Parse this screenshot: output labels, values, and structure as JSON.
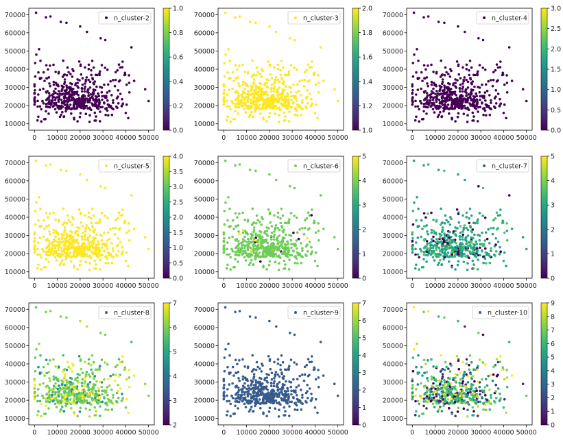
{
  "chart_data": [
    {
      "type": "scatter",
      "legend": "n_cluster-2",
      "legend_position": "top-right",
      "xlim": [
        -2500,
        52500
      ],
      "ylim": [
        6500,
        73500
      ],
      "xticks": [
        "0",
        "10000",
        "20000",
        "30000",
        "40000",
        "50000"
      ],
      "yticks": [
        "10000",
        "20000",
        "30000",
        "40000",
        "50000",
        "60000",
        "70000"
      ],
      "colorbar": {
        "min": 0,
        "max": 1,
        "ticks": [
          "0.0",
          "0.2",
          "0.4",
          "0.6",
          "0.8",
          "1.0"
        ]
      },
      "point_color_value": 0,
      "seed": 101,
      "mixed": false
    },
    {
      "type": "scatter",
      "legend": "n_cluster-3",
      "legend_position": "top-right",
      "xlim": [
        -2500,
        52500
      ],
      "ylim": [
        6500,
        73500
      ],
      "xticks": [
        "0",
        "10000",
        "20000",
        "30000",
        "40000",
        "50000"
      ],
      "yticks": [
        "10000",
        "20000",
        "30000",
        "40000",
        "50000",
        "60000",
        "70000"
      ],
      "colorbar": {
        "min": 1,
        "max": 2,
        "ticks": [
          "1.0",
          "1.2",
          "1.4",
          "1.6",
          "1.8",
          "2.0"
        ]
      },
      "point_color_value": 2,
      "seed": 101,
      "mixed": false
    },
    {
      "type": "scatter",
      "legend": "n_cluster-4",
      "legend_position": "top-right",
      "xlim": [
        -2500,
        52500
      ],
      "ylim": [
        6500,
        73500
      ],
      "xticks": [
        "0",
        "10000",
        "20000",
        "30000",
        "40000",
        "50000"
      ],
      "yticks": [
        "10000",
        "20000",
        "30000",
        "40000",
        "50000",
        "60000",
        "70000"
      ],
      "colorbar": {
        "min": 0,
        "max": 3,
        "ticks": [
          "0.0",
          "0.5",
          "1.0",
          "1.5",
          "2.0",
          "2.5",
          "3.0"
        ]
      },
      "point_color_value": 0,
      "seed": 101,
      "mixed": false
    },
    {
      "type": "scatter",
      "legend": "n_cluster-5",
      "legend_position": "top-right",
      "xlim": [
        -2500,
        52500
      ],
      "ylim": [
        6500,
        73500
      ],
      "xticks": [
        "0",
        "10000",
        "20000",
        "30000",
        "40000",
        "50000"
      ],
      "yticks": [
        "10000",
        "20000",
        "30000",
        "40000",
        "50000",
        "60000",
        "70000"
      ],
      "colorbar": {
        "min": 0,
        "max": 4,
        "ticks": [
          "0.0",
          "0.5",
          "1.0",
          "1.5",
          "2.0",
          "2.5",
          "3.0",
          "3.5",
          "4.0"
        ]
      },
      "point_color_value": 4,
      "seed": 101,
      "mixed": false
    },
    {
      "type": "scatter",
      "legend": "n_cluster-6",
      "legend_position": "top-right",
      "xlim": [
        -2500,
        52500
      ],
      "ylim": [
        6500,
        73500
      ],
      "xticks": [
        "0",
        "10000",
        "20000",
        "30000",
        "40000",
        "50000"
      ],
      "yticks": [
        "10000",
        "20000",
        "30000",
        "40000",
        "50000",
        "60000",
        "70000"
      ],
      "colorbar": {
        "min": 0,
        "max": 5,
        "ticks": [
          "0",
          "1",
          "2",
          "3",
          "4",
          "5"
        ]
      },
      "point_color_value": 3.9,
      "seed": 101,
      "mixed": false,
      "accent_values": [
        0,
        5
      ]
    },
    {
      "type": "scatter",
      "legend": "n_cluster-7",
      "legend_position": "top-right",
      "xlim": [
        -2500,
        52500
      ],
      "ylim": [
        6500,
        73500
      ],
      "xticks": [
        "0",
        "10000",
        "20000",
        "30000",
        "40000",
        "50000"
      ],
      "yticks": [
        "10000",
        "20000",
        "30000",
        "40000",
        "50000",
        "60000",
        "70000"
      ],
      "colorbar": {
        "min": 0,
        "max": 5,
        "ticks": [
          "0",
          "1",
          "2",
          "3",
          "4",
          "5"
        ]
      },
      "point_color_value": 2.9,
      "seed": 101,
      "mixed": true,
      "mix_values": [
        0,
        2.9,
        2.9,
        3.2,
        3.6,
        2.9
      ]
    },
    {
      "type": "scatter",
      "legend": "n_cluster-8",
      "legend_position": "top-right",
      "xlim": [
        -2500,
        52500
      ],
      "ylim": [
        6500,
        73500
      ],
      "xticks": [
        "0",
        "10000",
        "20000",
        "30000",
        "40000",
        "50000"
      ],
      "yticks": [
        "10000",
        "20000",
        "30000",
        "40000",
        "50000",
        "60000",
        "70000"
      ],
      "colorbar": {
        "min": 2,
        "max": 7,
        "ticks": [
          "2",
          "3",
          "4",
          "5",
          "6",
          "7"
        ]
      },
      "point_color_value": 6,
      "seed": 101,
      "mixed": true,
      "mix_values": [
        6,
        6,
        5.5,
        7,
        6.2,
        5.8,
        4.5,
        6.5
      ]
    },
    {
      "type": "scatter",
      "legend": "n_cluster-9",
      "legend_position": "top-right",
      "xlim": [
        -2500,
        52500
      ],
      "ylim": [
        6500,
        73500
      ],
      "xticks": [
        "0",
        "10000",
        "20000",
        "30000",
        "40000",
        "50000"
      ],
      "yticks": [
        "10000",
        "20000",
        "30000",
        "40000",
        "50000",
        "60000",
        "70000"
      ],
      "colorbar": {
        "min": 0,
        "max": 7,
        "ticks": [
          "0",
          "1",
          "2",
          "3",
          "4",
          "5",
          "6",
          "7"
        ]
      },
      "point_color_value": 2,
      "seed": 101,
      "mixed": false
    },
    {
      "type": "scatter",
      "legend": "n_cluster-10",
      "legend_position": "top-right",
      "xlim": [
        -2500,
        52500
      ],
      "ylim": [
        6500,
        73500
      ],
      "xticks": [
        "0",
        "10000",
        "20000",
        "30000",
        "40000",
        "50000"
      ],
      "yticks": [
        "10000",
        "20000",
        "30000",
        "40000",
        "50000",
        "60000",
        "70000"
      ],
      "colorbar": {
        "min": 0,
        "max": 9,
        "ticks": [
          "0",
          "1",
          "2",
          "3",
          "4",
          "5",
          "6",
          "7",
          "8",
          "9"
        ]
      },
      "point_color_value": 6,
      "seed": 101,
      "mixed": true,
      "mix_values": [
        6,
        7,
        8,
        9,
        5,
        4,
        6,
        7,
        1,
        0
      ]
    }
  ]
}
